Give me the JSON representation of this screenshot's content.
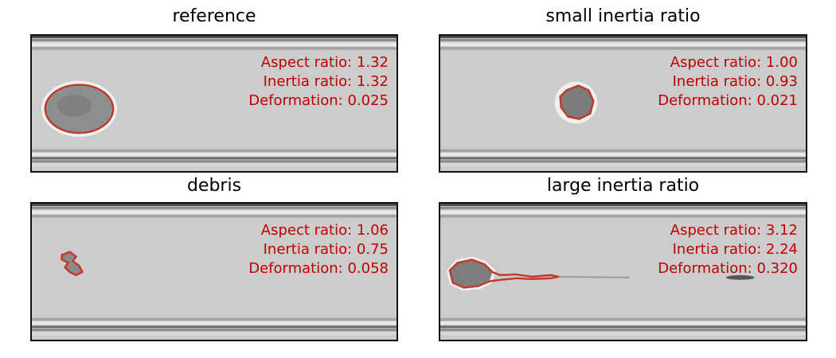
{
  "panels": [
    {
      "title": "reference",
      "metrics": {
        "aspect_label": "Aspect ratio:",
        "aspect_value": "1.32",
        "inertia_label": "Inertia ratio:",
        "inertia_value": "1.32",
        "deformation_label": "Deformation:",
        "deformation_value": "0.025"
      }
    },
    {
      "title": "small inertia ratio",
      "metrics": {
        "aspect_label": "Aspect ratio:",
        "aspect_value": "1.00",
        "inertia_label": "Inertia ratio:",
        "inertia_value": "0.93",
        "deformation_label": "Deformation:",
        "deformation_value": "0.021"
      }
    },
    {
      "title": "debris",
      "metrics": {
        "aspect_label": "Aspect ratio:",
        "aspect_value": "1.06",
        "inertia_label": "Inertia ratio:",
        "inertia_value": "0.75",
        "deformation_label": "Deformation:",
        "deformation_value": "0.058"
      }
    },
    {
      "title": "large inertia ratio",
      "metrics": {
        "aspect_label": "Aspect ratio:",
        "aspect_value": "3.12",
        "inertia_label": "Inertia ratio:",
        "inertia_value": "2.24",
        "deformation_label": "Deformation:",
        "deformation_value": "0.320"
      }
    }
  ],
  "colors": {
    "contour": "#c0392b",
    "annotation_text": "#c00000",
    "channel_background": "#cfcfcf"
  }
}
